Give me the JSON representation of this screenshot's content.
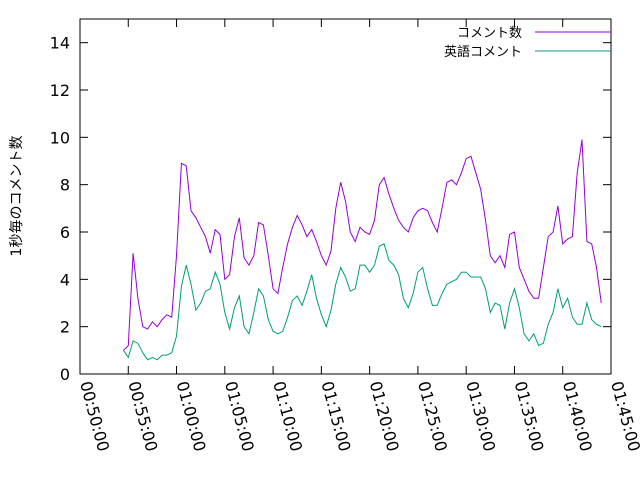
{
  "chart_data": {
    "type": "line",
    "ylabel": "1秒毎のコメント数",
    "xlabel": "",
    "ylim": [
      0,
      15
    ],
    "xlim": [
      "00:50:00",
      "01:45:00"
    ],
    "y_ticks": [
      "0",
      "2",
      "4",
      "6",
      "8",
      "10",
      "12",
      "14"
    ],
    "x_ticks": [
      "00:50:00",
      "00:55:00",
      "01:00:00",
      "01:05:00",
      "01:10:00",
      "01:15:00",
      "01:20:00",
      "01:25:00",
      "01:30:00",
      "01:35:00",
      "01:40:00",
      "01:45:00"
    ],
    "grid": false,
    "legend_position": "top-right",
    "series": [
      {
        "name": "コメント数",
        "color": "#9400d3",
        "points": [
          [
            "00:54:30",
            1.0
          ],
          [
            "00:55:00",
            1.2
          ],
          [
            "00:55:30",
            5.1
          ],
          [
            "00:56:00",
            3.2
          ],
          [
            "00:56:30",
            2.0
          ],
          [
            "00:57:00",
            1.9
          ],
          [
            "00:57:30",
            2.2
          ],
          [
            "00:58:00",
            2.0
          ],
          [
            "00:58:30",
            2.3
          ],
          [
            "00:59:00",
            2.5
          ],
          [
            "00:59:30",
            2.4
          ],
          [
            "01:00:00",
            5.0
          ],
          [
            "01:00:30",
            8.9
          ],
          [
            "01:01:00",
            8.8
          ],
          [
            "01:01:30",
            6.9
          ],
          [
            "01:02:00",
            6.6
          ],
          [
            "01:02:30",
            6.2
          ],
          [
            "01:03:00",
            5.8
          ],
          [
            "01:03:30",
            5.1
          ],
          [
            "01:04:00",
            6.1
          ],
          [
            "01:04:30",
            5.9
          ],
          [
            "01:05:00",
            4.0
          ],
          [
            "01:05:30",
            4.2
          ],
          [
            "01:06:00",
            5.8
          ],
          [
            "01:06:30",
            6.6
          ],
          [
            "01:07:00",
            4.9
          ],
          [
            "01:07:30",
            4.6
          ],
          [
            "01:08:00",
            5.0
          ],
          [
            "01:08:30",
            6.4
          ],
          [
            "01:09:00",
            6.3
          ],
          [
            "01:09:30",
            5.0
          ],
          [
            "01:10:00",
            3.6
          ],
          [
            "01:10:30",
            3.4
          ],
          [
            "01:11:00",
            4.5
          ],
          [
            "01:11:30",
            5.5
          ],
          [
            "01:12:00",
            6.2
          ],
          [
            "01:12:30",
            6.7
          ],
          [
            "01:13:00",
            6.3
          ],
          [
            "01:13:30",
            5.8
          ],
          [
            "01:14:00",
            6.1
          ],
          [
            "01:14:30",
            5.6
          ],
          [
            "01:15:00",
            5.0
          ],
          [
            "01:15:30",
            4.6
          ],
          [
            "01:16:00",
            5.2
          ],
          [
            "01:16:30",
            7.0
          ],
          [
            "01:17:00",
            8.1
          ],
          [
            "01:17:30",
            7.3
          ],
          [
            "01:18:00",
            6.0
          ],
          [
            "01:18:30",
            5.6
          ],
          [
            "01:19:00",
            6.2
          ],
          [
            "01:19:30",
            6.0
          ],
          [
            "01:20:00",
            5.9
          ],
          [
            "01:20:30",
            6.5
          ],
          [
            "01:21:00",
            8.0
          ],
          [
            "01:21:30",
            8.3
          ],
          [
            "01:22:00",
            7.6
          ],
          [
            "01:22:30",
            7.0
          ],
          [
            "01:23:00",
            6.5
          ],
          [
            "01:23:30",
            6.2
          ],
          [
            "01:24:00",
            6.0
          ],
          [
            "01:24:30",
            6.6
          ],
          [
            "01:25:00",
            6.9
          ],
          [
            "01:25:30",
            7.0
          ],
          [
            "01:26:00",
            6.9
          ],
          [
            "01:26:30",
            6.4
          ],
          [
            "01:27:00",
            6.0
          ],
          [
            "01:27:30",
            7.0
          ],
          [
            "01:28:00",
            8.1
          ],
          [
            "01:28:30",
            8.2
          ],
          [
            "01:29:00",
            8.0
          ],
          [
            "01:29:30",
            8.5
          ],
          [
            "01:30:00",
            9.1
          ],
          [
            "01:30:30",
            9.2
          ],
          [
            "01:31:00",
            8.5
          ],
          [
            "01:31:30",
            7.8
          ],
          [
            "01:32:00",
            6.5
          ],
          [
            "01:32:30",
            5.0
          ],
          [
            "01:33:00",
            4.7
          ],
          [
            "01:33:30",
            5.0
          ],
          [
            "01:34:00",
            4.5
          ],
          [
            "01:34:30",
            5.9
          ],
          [
            "01:35:00",
            6.0
          ],
          [
            "01:35:30",
            4.5
          ],
          [
            "01:36:00",
            4.0
          ],
          [
            "01:36:30",
            3.5
          ],
          [
            "01:37:00",
            3.2
          ],
          [
            "01:37:30",
            3.2
          ],
          [
            "01:38:00",
            4.5
          ],
          [
            "01:38:30",
            5.8
          ],
          [
            "01:39:00",
            6.0
          ],
          [
            "01:39:30",
            7.1
          ],
          [
            "01:40:00",
            5.5
          ],
          [
            "01:40:30",
            5.7
          ],
          [
            "01:41:00",
            5.8
          ],
          [
            "01:41:30",
            8.5
          ],
          [
            "01:42:00",
            9.9
          ],
          [
            "01:42:30",
            5.6
          ],
          [
            "01:43:00",
            5.5
          ],
          [
            "01:43:30",
            4.5
          ],
          [
            "01:44:00",
            3.0
          ]
        ]
      },
      {
        "name": "英語コメント",
        "color": "#009e73",
        "points": [
          [
            "00:54:30",
            1.0
          ],
          [
            "00:55:00",
            0.7
          ],
          [
            "00:55:30",
            1.4
          ],
          [
            "00:56:00",
            1.3
          ],
          [
            "00:56:30",
            0.9
          ],
          [
            "00:57:00",
            0.6
          ],
          [
            "00:57:30",
            0.7
          ],
          [
            "00:58:00",
            0.6
          ],
          [
            "00:58:30",
            0.8
          ],
          [
            "00:59:00",
            0.8
          ],
          [
            "00:59:30",
            0.9
          ],
          [
            "01:00:00",
            1.6
          ],
          [
            "01:00:30",
            3.7
          ],
          [
            "01:01:00",
            4.6
          ],
          [
            "01:01:30",
            3.8
          ],
          [
            "01:02:00",
            2.7
          ],
          [
            "01:02:30",
            3.0
          ],
          [
            "01:03:00",
            3.5
          ],
          [
            "01:03:30",
            3.6
          ],
          [
            "01:04:00",
            4.3
          ],
          [
            "01:04:30",
            3.8
          ],
          [
            "01:05:00",
            2.6
          ],
          [
            "01:05:30",
            1.9
          ],
          [
            "01:06:00",
            2.8
          ],
          [
            "01:06:30",
            3.3
          ],
          [
            "01:07:00",
            2.0
          ],
          [
            "01:07:30",
            1.7
          ],
          [
            "01:08:00",
            2.6
          ],
          [
            "01:08:30",
            3.6
          ],
          [
            "01:09:00",
            3.3
          ],
          [
            "01:09:30",
            2.3
          ],
          [
            "01:10:00",
            1.8
          ],
          [
            "01:10:30",
            1.7
          ],
          [
            "01:11:00",
            1.8
          ],
          [
            "01:11:30",
            2.4
          ],
          [
            "01:12:00",
            3.1
          ],
          [
            "01:12:30",
            3.3
          ],
          [
            "01:13:00",
            2.9
          ],
          [
            "01:13:30",
            3.5
          ],
          [
            "01:14:00",
            4.2
          ],
          [
            "01:14:30",
            3.2
          ],
          [
            "01:15:00",
            2.5
          ],
          [
            "01:15:30",
            2.0
          ],
          [
            "01:16:00",
            2.7
          ],
          [
            "01:16:30",
            3.8
          ],
          [
            "01:17:00",
            4.5
          ],
          [
            "01:17:30",
            4.1
          ],
          [
            "01:18:00",
            3.5
          ],
          [
            "01:18:30",
            3.6
          ],
          [
            "01:19:00",
            4.6
          ],
          [
            "01:19:30",
            4.6
          ],
          [
            "01:20:00",
            4.3
          ],
          [
            "01:20:30",
            4.6
          ],
          [
            "01:21:00",
            5.4
          ],
          [
            "01:21:30",
            5.5
          ],
          [
            "01:22:00",
            4.8
          ],
          [
            "01:22:30",
            4.6
          ],
          [
            "01:23:00",
            4.2
          ],
          [
            "01:23:30",
            3.2
          ],
          [
            "01:24:00",
            2.8
          ],
          [
            "01:24:30",
            3.4
          ],
          [
            "01:25:00",
            4.3
          ],
          [
            "01:25:30",
            4.5
          ],
          [
            "01:26:00",
            3.6
          ],
          [
            "01:26:30",
            2.9
          ],
          [
            "01:27:00",
            2.9
          ],
          [
            "01:27:30",
            3.4
          ],
          [
            "01:28:00",
            3.8
          ],
          [
            "01:28:30",
            3.9
          ],
          [
            "01:29:00",
            4.0
          ],
          [
            "01:29:30",
            4.3
          ],
          [
            "01:30:00",
            4.3
          ],
          [
            "01:30:30",
            4.1
          ],
          [
            "01:31:00",
            4.1
          ],
          [
            "01:31:30",
            4.1
          ],
          [
            "01:32:00",
            3.6
          ],
          [
            "01:32:30",
            2.6
          ],
          [
            "01:33:00",
            3.0
          ],
          [
            "01:33:30",
            2.9
          ],
          [
            "01:34:00",
            1.9
          ],
          [
            "01:34:30",
            3.0
          ],
          [
            "01:35:00",
            3.6
          ],
          [
            "01:35:30",
            2.8
          ],
          [
            "01:36:00",
            1.7
          ],
          [
            "01:36:30",
            1.4
          ],
          [
            "01:37:00",
            1.7
          ],
          [
            "01:37:30",
            1.2
          ],
          [
            "01:38:00",
            1.3
          ],
          [
            "01:38:30",
            2.1
          ],
          [
            "01:39:00",
            2.6
          ],
          [
            "01:39:30",
            3.6
          ],
          [
            "01:40:00",
            2.8
          ],
          [
            "01:40:30",
            3.2
          ],
          [
            "01:41:00",
            2.4
          ],
          [
            "01:41:30",
            2.1
          ],
          [
            "01:42:00",
            2.1
          ],
          [
            "01:42:30",
            3.0
          ],
          [
            "01:43:00",
            2.3
          ],
          [
            "01:43:30",
            2.1
          ],
          [
            "01:44:00",
            2.0
          ]
        ]
      }
    ]
  }
}
